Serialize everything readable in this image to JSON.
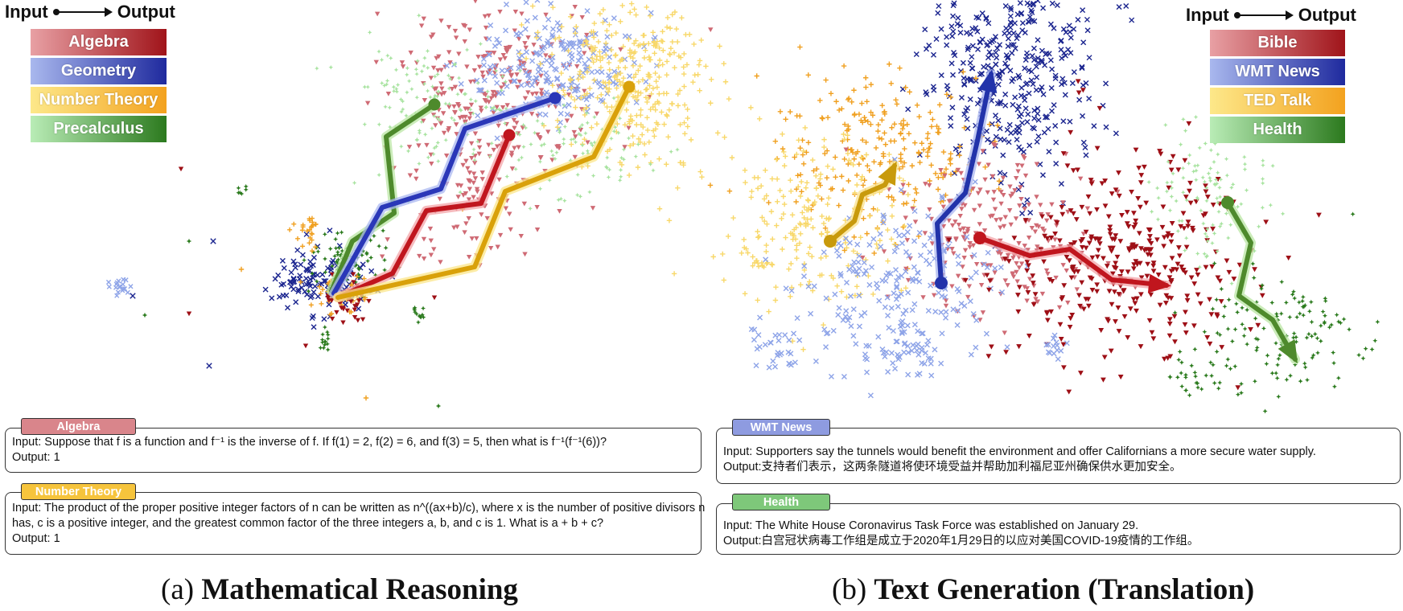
{
  "panels": [
    {
      "id": "a",
      "caption_prefix": "(a) ",
      "caption_bold": "Mathematical Reasoning",
      "io_input": "Input",
      "io_output": "Output",
      "legend": [
        {
          "name": "Algebra",
          "color": "#a0141a",
          "light": "#e8a0a4"
        },
        {
          "name": "Geometry",
          "color": "#1f2a9e",
          "light": "#a9b8ee"
        },
        {
          "name": "Number Theory",
          "color": "#f3a21f",
          "light": "#fde88a"
        },
        {
          "name": "Precalculus",
          "color": "#2c7a1e",
          "light": "#b9ecb6"
        }
      ],
      "examples": [
        {
          "tag": "Algebra",
          "lines": [
            "Input: Suppose that f is a function and f⁻¹ is the inverse of f.  If f(1) = 2, f(2) = 6, and f(3) = 5, then what is f⁻¹(f⁻¹(6))?",
            "Output: 1"
          ]
        },
        {
          "tag": "Number Theory",
          "lines": [
            "Input: The product of the proper positive integer factors of n can be written as n^((ax+b)/c), where x is the number of positive divisors n",
            "has, c is a positive integer, and the greatest common factor of the three integers a, b, and c is 1. What is a + b + c?",
            "Output: 1"
          ]
        }
      ]
    },
    {
      "id": "b",
      "caption_prefix": "(b) ",
      "caption_bold": "Text Generation (Translation)",
      "io_input": "Input",
      "io_output": "Output",
      "legend": [
        {
          "name": "Bible",
          "color": "#a0141a",
          "light": "#e8a0a4"
        },
        {
          "name": "WMT News",
          "color": "#1f2a9e",
          "light": "#a9b8ee"
        },
        {
          "name": "TED Talk",
          "color": "#f3a21f",
          "light": "#fde88a"
        },
        {
          "name": "Health",
          "color": "#2c7a1e",
          "light": "#b9ecb6"
        }
      ],
      "examples": [
        {
          "tag": "WMT News",
          "lines": [
            "Input: Supporters say the tunnels would benefit the environment and offer Californians a more secure water supply.",
            "Output:支持者们表示，这两条隧道将使环境受益并帮助加利福尼亚州确保供水更加安全。"
          ]
        },
        {
          "tag": "Health",
          "lines": [
            "Input: The White House Coronavirus Task Force was established on January 29.",
            "Output:白宫冠状病毒工作组是成立于2020年1月29日的以应对美国COVID-19疫情的工作组。"
          ]
        }
      ]
    }
  ]
}
